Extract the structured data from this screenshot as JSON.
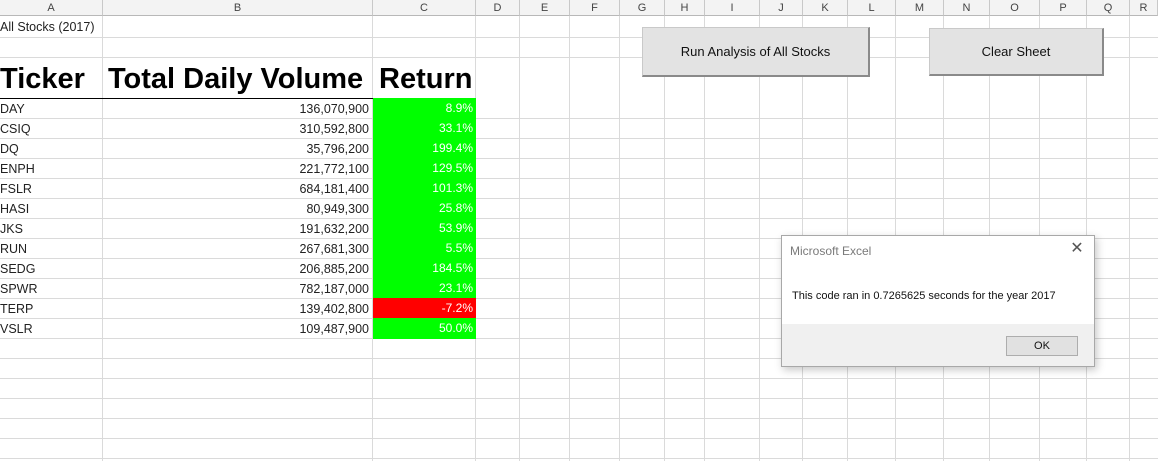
{
  "columns": [
    "A",
    "B",
    "C",
    "D",
    "E",
    "F",
    "G",
    "H",
    "I",
    "J",
    "K",
    "L",
    "M",
    "N",
    "O",
    "P",
    "Q",
    "R"
  ],
  "sheet_title": "All Stocks (2017)",
  "headers": {
    "ticker": "Ticker",
    "volume": "Total Daily Volume",
    "return": "Return"
  },
  "rows": [
    {
      "ticker": "DAY",
      "volume": "136,070,900",
      "return": "8.9%",
      "status": "positive"
    },
    {
      "ticker": "CSIQ",
      "volume": "310,592,800",
      "return": "33.1%",
      "status": "positive"
    },
    {
      "ticker": "DQ",
      "volume": "35,796,200",
      "return": "199.4%",
      "status": "positive"
    },
    {
      "ticker": "ENPH",
      "volume": "221,772,100",
      "return": "129.5%",
      "status": "positive"
    },
    {
      "ticker": "FSLR",
      "volume": "684,181,400",
      "return": "101.3%",
      "status": "positive"
    },
    {
      "ticker": "HASI",
      "volume": "80,949,300",
      "return": "25.8%",
      "status": "positive"
    },
    {
      "ticker": "JKS",
      "volume": "191,632,200",
      "return": "53.9%",
      "status": "positive"
    },
    {
      "ticker": "RUN",
      "volume": "267,681,300",
      "return": "5.5%",
      "status": "positive"
    },
    {
      "ticker": "SEDG",
      "volume": "206,885,200",
      "return": "184.5%",
      "status": "positive"
    },
    {
      "ticker": "SPWR",
      "volume": "782,187,000",
      "return": "23.1%",
      "status": "positive"
    },
    {
      "ticker": "TERP",
      "volume": "139,402,800",
      "return": "-7.2%",
      "status": "negative"
    },
    {
      "ticker": "VSLR",
      "volume": "109,487,900",
      "return": "50.0%",
      "status": "positive"
    }
  ],
  "buttons": {
    "run": "Run Analysis of All Stocks",
    "clear": "Clear Sheet"
  },
  "dialog": {
    "title": "Microsoft Excel",
    "message": "This code ran in 0.7265625 seconds for the year 2017",
    "ok": "OK",
    "close_icon": "close-icon"
  },
  "colors": {
    "positive": "#00ff00",
    "negative": "#ff0000",
    "return_text": "#ffffff"
  }
}
